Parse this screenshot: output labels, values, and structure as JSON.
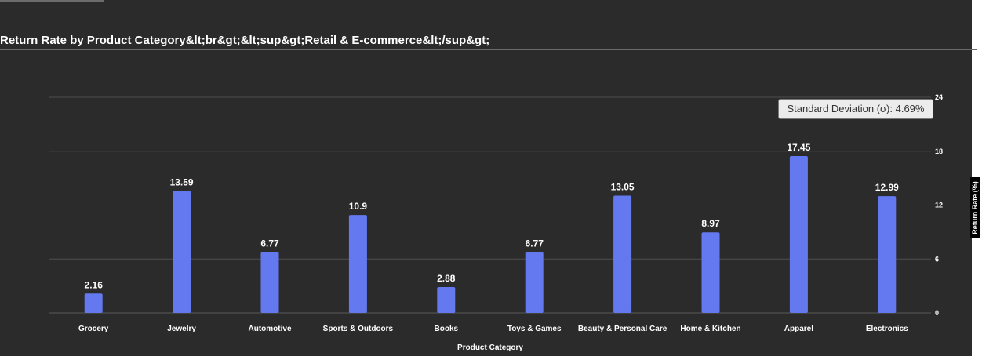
{
  "chart_data": {
    "type": "bar",
    "title": "Return Rate by Product Category&lt;br&gt;&lt;sup&gt;Retail & E-commerce&lt;/sup&gt;",
    "xlabel": "Product Category",
    "ylabel": "Return Rate (%)",
    "categories": [
      "Grocery",
      "Jewelry",
      "Automotive",
      "Sports & Outdoors",
      "Books",
      "Toys & Games",
      "Beauty & Personal Care",
      "Home & Kitchen",
      "Apparel",
      "Electronics"
    ],
    "values": [
      2.16,
      13.59,
      6.77,
      10.9,
      2.88,
      6.77,
      13.05,
      8.97,
      17.45,
      12.99
    ],
    "data_labels": [
      "2.16",
      "13.59",
      "6.77",
      "10.9",
      "2.88",
      "6.77",
      "13.05",
      "8.97",
      "17.45",
      "12.99"
    ],
    "y_ticks": [
      0,
      6,
      12,
      18,
      24
    ],
    "ylim": [
      0,
      24
    ],
    "y_axis_side": "right",
    "grid": true,
    "annotation": "Standard Deviation (σ): 4.69%",
    "colors": {
      "bar": "#6478f0",
      "background": "#2b2b2b",
      "grid": "#4e4e4e",
      "text": "#ffffff"
    }
  }
}
